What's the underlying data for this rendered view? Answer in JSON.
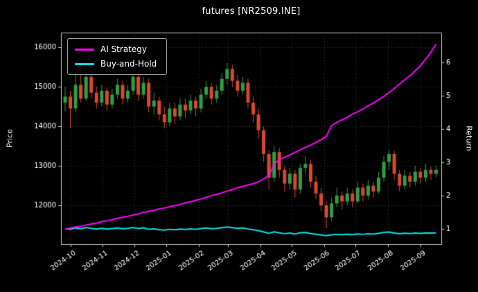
{
  "title": "futures [NR2509.INE]",
  "chart_data": {
    "type": "candlestick+line",
    "title": "futures [NR2509.INE]",
    "xlabel": "",
    "ylabel_left": "Price",
    "ylabel_right": "Return",
    "grid": "dotted",
    "legend_position": "upper-left",
    "price_ticks": [
      12000,
      13000,
      14000,
      15000,
      16000
    ],
    "return_ticks": [
      1,
      2,
      3,
      4,
      5,
      6
    ],
    "price_ylim": [
      11020,
      16370
    ],
    "return_ylim": [
      0.545,
      6.895
    ],
    "x_range_days": [
      -4,
      360
    ],
    "x_ticks": [
      {
        "label": "2024-10",
        "day": 5
      },
      {
        "label": "2024-11",
        "day": 36
      },
      {
        "label": "2024-12",
        "day": 66
      },
      {
        "label": "2025-01",
        "day": 97
      },
      {
        "label": "2025-02",
        "day": 128
      },
      {
        "label": "2025-03",
        "day": 156
      },
      {
        "label": "2025-04",
        "day": 187
      },
      {
        "label": "2025-05",
        "day": 217
      },
      {
        "label": "2025-06",
        "day": 248
      },
      {
        "label": "2025-07",
        "day": 278
      },
      {
        "label": "2025-08",
        "day": 309
      },
      {
        "label": "2025-09",
        "day": 340
      }
    ],
    "candle_day_step": 5,
    "colors": {
      "background": "#000000",
      "grid": "#3c3c3c",
      "spine": "#c9c9c9",
      "text": "#ffffff",
      "candle_up": "#2f9e44",
      "candle_down": "#d9482e"
    },
    "candles_ohlc": [
      [
        14600,
        15000,
        14380,
        14750
      ],
      [
        14750,
        14900,
        13950,
        14450
      ],
      [
        14450,
        15300,
        14350,
        15050
      ],
      [
        15050,
        15550,
        14600,
        14700
      ],
      [
        14700,
        15400,
        14650,
        15250
      ],
      [
        15250,
        15380,
        14700,
        14850
      ],
      [
        14850,
        15000,
        14450,
        14600
      ],
      [
        14600,
        15050,
        14500,
        14900
      ],
      [
        14900,
        14980,
        14380,
        14550
      ],
      [
        14550,
        14950,
        14450,
        14800
      ],
      [
        14800,
        15200,
        14700,
        15050
      ],
      [
        15050,
        15150,
        14550,
        14700
      ],
      [
        14700,
        15050,
        14600,
        14900
      ],
      [
        14900,
        15450,
        14800,
        15250
      ],
      [
        15250,
        15350,
        14650,
        14800
      ],
      [
        14800,
        15250,
        14700,
        15100
      ],
      [
        15100,
        15200,
        14350,
        14500
      ],
      [
        14500,
        14850,
        14300,
        14650
      ],
      [
        14650,
        14750,
        14150,
        14300
      ],
      [
        14300,
        14500,
        13950,
        14100
      ],
      [
        14100,
        14600,
        14000,
        14450
      ],
      [
        14450,
        14600,
        14050,
        14250
      ],
      [
        14250,
        14700,
        14150,
        14550
      ],
      [
        14550,
        14700,
        14200,
        14400
      ],
      [
        14400,
        14800,
        14300,
        14650
      ],
      [
        14650,
        14750,
        14250,
        14450
      ],
      [
        14450,
        14950,
        14350,
        14800
      ],
      [
        14800,
        15150,
        14700,
        15000
      ],
      [
        15000,
        15100,
        14550,
        14700
      ],
      [
        14700,
        15050,
        14600,
        14900
      ],
      [
        14900,
        15350,
        14800,
        15200
      ],
      [
        15200,
        15600,
        15050,
        15450
      ],
      [
        15450,
        15550,
        15000,
        15150
      ],
      [
        15150,
        15300,
        14750,
        14900
      ],
      [
        14900,
        15250,
        14800,
        15100
      ],
      [
        15100,
        15200,
        14450,
        14600
      ],
      [
        14600,
        14750,
        14100,
        14300
      ],
      [
        14300,
        14450,
        13700,
        13900
      ],
      [
        13900,
        14000,
        13100,
        13300
      ],
      [
        13300,
        13400,
        12400,
        12700
      ],
      [
        12700,
        13500,
        12600,
        13350
      ],
      [
        13350,
        13450,
        12700,
        12900
      ],
      [
        12900,
        13000,
        12350,
        12550
      ],
      [
        12550,
        12950,
        12400,
        12800
      ],
      [
        12800,
        12900,
        12200,
        12400
      ],
      [
        12400,
        13050,
        12300,
        12950
      ],
      [
        12950,
        13250,
        12800,
        13050
      ],
      [
        13050,
        13150,
        12450,
        12600
      ],
      [
        12600,
        12750,
        12150,
        12300
      ],
      [
        12300,
        12450,
        11850,
        12000
      ],
      [
        12000,
        12100,
        11420,
        11700
      ],
      [
        11700,
        12200,
        11600,
        12050
      ],
      [
        12050,
        12450,
        11950,
        12250
      ],
      [
        12250,
        12350,
        11900,
        12100
      ],
      [
        12100,
        12450,
        12000,
        12300
      ],
      [
        12300,
        12400,
        11950,
        12100
      ],
      [
        12100,
        12600,
        12050,
        12450
      ],
      [
        12450,
        12550,
        12100,
        12250
      ],
      [
        12250,
        12650,
        12150,
        12500
      ],
      [
        12500,
        12600,
        12200,
        12350
      ],
      [
        12350,
        12850,
        12300,
        12700
      ],
      [
        12700,
        13250,
        12600,
        13100
      ],
      [
        13100,
        13400,
        12900,
        13300
      ],
      [
        13300,
        13380,
        12650,
        12800
      ],
      [
        12800,
        12900,
        12350,
        12500
      ],
      [
        12500,
        12900,
        12400,
        12750
      ],
      [
        12750,
        12850,
        12450,
        12600
      ],
      [
        12600,
        13000,
        12500,
        12850
      ],
      [
        12850,
        12950,
        12550,
        12700
      ],
      [
        12700,
        13050,
        12600,
        12900
      ],
      [
        12900,
        12980,
        12650,
        12800
      ],
      [
        12800,
        13000,
        12700,
        12900
      ]
    ],
    "series": [
      {
        "name": "AI Strategy",
        "axis": "return",
        "color": "#ff00ff",
        "line_width": 2,
        "values": [
          1.0,
          1.03,
          1.06,
          1.08,
          1.12,
          1.15,
          1.18,
          1.22,
          1.25,
          1.28,
          1.32,
          1.35,
          1.38,
          1.42,
          1.45,
          1.5,
          1.53,
          1.56,
          1.6,
          1.63,
          1.67,
          1.7,
          1.74,
          1.78,
          1.82,
          1.86,
          1.9,
          1.95,
          2.0,
          2.04,
          2.08,
          2.14,
          2.18,
          2.24,
          2.28,
          2.32,
          2.36,
          2.42,
          2.5,
          2.6,
          2.95,
          3.08,
          3.15,
          3.22,
          3.3,
          3.38,
          3.45,
          3.52,
          3.6,
          3.68,
          3.78,
          4.1,
          4.2,
          4.28,
          4.35,
          4.45,
          4.52,
          4.6,
          4.7,
          4.78,
          4.88,
          4.98,
          5.1,
          5.22,
          5.35,
          5.48,
          5.6,
          5.75,
          5.9,
          6.1,
          6.3,
          6.55
        ]
      },
      {
        "name": "Buy-and-Hold",
        "axis": "return",
        "color": "#00e5e6",
        "line_width": 2,
        "values": [
          1.01,
          0.99,
          1.031,
          1.007,
          1.045,
          1.017,
          1.0,
          1.021,
          0.997,
          1.014,
          1.031,
          1.007,
          1.021,
          1.045,
          1.014,
          1.034,
          0.993,
          1.003,
          0.979,
          0.966,
          0.99,
          0.976,
          0.997,
          0.986,
          1.003,
          0.99,
          1.014,
          1.027,
          1.007,
          1.021,
          1.041,
          1.058,
          1.038,
          1.021,
          1.034,
          1.0,
          0.979,
          0.952,
          0.911,
          0.87,
          0.914,
          0.884,
          0.86,
          0.877,
          0.849,
          0.887,
          0.894,
          0.863,
          0.842,
          0.822,
          0.801,
          0.825,
          0.839,
          0.829,
          0.842,
          0.829,
          0.853,
          0.839,
          0.856,
          0.846,
          0.87,
          0.897,
          0.911,
          0.877,
          0.856,
          0.873,
          0.863,
          0.88,
          0.87,
          0.884,
          0.877,
          0.884
        ]
      }
    ]
  }
}
